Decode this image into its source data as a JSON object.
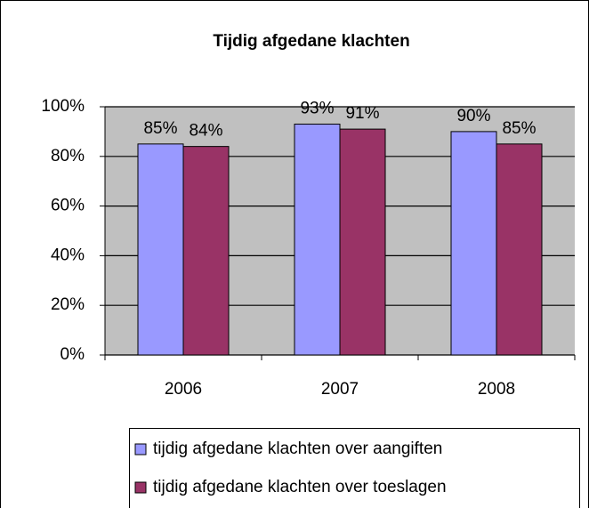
{
  "chart_data": {
    "type": "bar",
    "title": "Tijdig afgedane klachten",
    "categories": [
      "2006",
      "2007",
      "2008"
    ],
    "series": [
      {
        "name": "tijdig afgedane klachten over aangiften",
        "color": "#9999ff",
        "values": [
          85,
          93,
          90
        ],
        "value_labels": [
          "85%",
          "93%",
          "90%"
        ]
      },
      {
        "name": "tijdig afgedane klachten over toeslagen",
        "color": "#993366",
        "values": [
          84,
          91,
          85
        ],
        "value_labels": [
          "84%",
          "91%",
          "85%"
        ]
      }
    ],
    "ylim": [
      0,
      100
    ],
    "yticks": [
      {
        "value": 0,
        "label": "0%"
      },
      {
        "value": 20,
        "label": "20%"
      },
      {
        "value": 40,
        "label": "40%"
      },
      {
        "value": 60,
        "label": "60%"
      },
      {
        "value": 80,
        "label": "80%"
      },
      {
        "value": 100,
        "label": "100%"
      }
    ],
    "grid": true,
    "plot_background": "#c0c0c0",
    "legend": "bottom"
  }
}
